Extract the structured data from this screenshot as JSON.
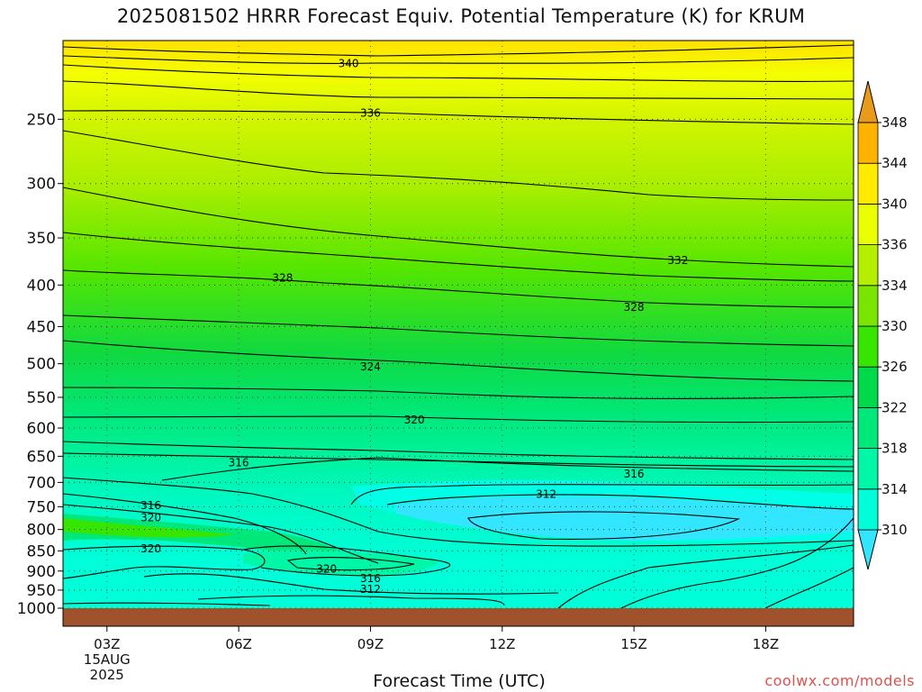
{
  "page": {
    "title": "2025081502 HRRR Forecast Equiv. Potential Temperature (K) for KRUM",
    "xlabel": "Forecast Time (UTC)",
    "credit": "coolwx.com/models"
  },
  "chart_data": {
    "type": "contour",
    "title": "2025081502 HRRR Forecast Equiv. Potential Temperature (K) for KRUM",
    "xlabel": "Forecast Time (UTC)",
    "ylabel": "",
    "x_ticks": [
      {
        "label": "03Z",
        "sub": [
          "15AUG",
          "2025"
        ],
        "hour": 3
      },
      {
        "label": "06Z",
        "hour": 6
      },
      {
        "label": "09Z",
        "hour": 9
      },
      {
        "label": "12Z",
        "hour": 12
      },
      {
        "label": "15Z",
        "hour": 15
      },
      {
        "label": "18Z",
        "hour": 18
      }
    ],
    "xlim": [
      2,
      20
    ],
    "y_ticks": [
      250,
      300,
      350,
      400,
      450,
      500,
      550,
      600,
      650,
      700,
      750,
      800,
      850,
      900,
      950,
      1000
    ],
    "ylim": [
      1000,
      200
    ],
    "y_scale": "log-pressure",
    "colorbar": {
      "levels": [
        310,
        314,
        318,
        322,
        326,
        330,
        334,
        336,
        340,
        344,
        348
      ],
      "colors": [
        "#33e6ff",
        "#00ffd9",
        "#00f7a6",
        "#00e87a",
        "#00d94a",
        "#36e600",
        "#7ae600",
        "#b5ee00",
        "#eaff00",
        "#ffea00",
        "#ffb300",
        "#e89a1a"
      ],
      "extend": "both"
    },
    "contour_labels": [
      {
        "value": "340",
        "hour": 8.5,
        "p": 213
      },
      {
        "value": "336",
        "hour": 9.0,
        "p": 245
      },
      {
        "value": "332",
        "hour": 16.0,
        "p": 372
      },
      {
        "value": "328",
        "hour": 7.0,
        "p": 391
      },
      {
        "value": "328",
        "hour": 15.0,
        "p": 425
      },
      {
        "value": "324",
        "hour": 9.0,
        "p": 503
      },
      {
        "value": "320",
        "hour": 10.0,
        "p": 585
      },
      {
        "value": "316",
        "hour": 6.0,
        "p": 660
      },
      {
        "value": "316",
        "hour": 15.0,
        "p": 682
      },
      {
        "value": "312",
        "hour": 13.0,
        "p": 722
      },
      {
        "value": "316",
        "hour": 4.0,
        "p": 745
      },
      {
        "value": "320",
        "hour": 4.0,
        "p": 772
      },
      {
        "value": "320",
        "hour": 4.0,
        "p": 843
      },
      {
        "value": "320",
        "hour": 8.0,
        "p": 892
      },
      {
        "value": "316",
        "hour": 9.0,
        "p": 917
      },
      {
        "value": "312",
        "hour": 9.0,
        "p": 945
      }
    ],
    "ground_color": "#a0522d",
    "grid": true
  }
}
